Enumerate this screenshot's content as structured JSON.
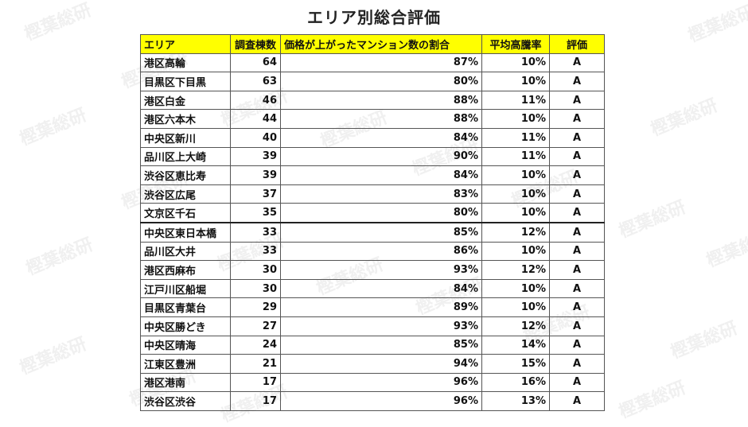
{
  "title": "エリア別総合評価",
  "table": {
    "headers": [
      "エリア",
      "調査棟数",
      "価格が上がったマンション数の割合",
      "平均高騰率",
      "評価"
    ],
    "rows": [
      {
        "area": "港区高輪",
        "count": "64",
        "share": "87%",
        "rate": "10%",
        "grade": "A"
      },
      {
        "area": "目黒区下目黒",
        "count": "63",
        "share": "80%",
        "rate": "10%",
        "grade": "A"
      },
      {
        "area": "港区白金",
        "count": "46",
        "share": "88%",
        "rate": "11%",
        "grade": "A"
      },
      {
        "area": "港区六本木",
        "count": "44",
        "share": "88%",
        "rate": "10%",
        "grade": "A"
      },
      {
        "area": "中央区新川",
        "count": "40",
        "share": "84%",
        "rate": "11%",
        "grade": "A"
      },
      {
        "area": "品川区上大崎",
        "count": "39",
        "share": "90%",
        "rate": "11%",
        "grade": "A"
      },
      {
        "area": "渋谷区恵比寿",
        "count": "39",
        "share": "84%",
        "rate": "10%",
        "grade": "A"
      },
      {
        "area": "渋谷区広尾",
        "count": "37",
        "share": "83%",
        "rate": "10%",
        "grade": "A"
      },
      {
        "area": "文京区千石",
        "count": "35",
        "share": "80%",
        "rate": "10%",
        "grade": "A"
      },
      {
        "area": "中央区東日本橋",
        "count": "33",
        "share": "85%",
        "rate": "12%",
        "grade": "A"
      },
      {
        "area": "品川区大井",
        "count": "33",
        "share": "86%",
        "rate": "10%",
        "grade": "A"
      },
      {
        "area": "港区西麻布",
        "count": "30",
        "share": "93%",
        "rate": "12%",
        "grade": "A"
      },
      {
        "area": "江戸川区船堀",
        "count": "30",
        "share": "84%",
        "rate": "10%",
        "grade": "A"
      },
      {
        "area": "目黒区青葉台",
        "count": "29",
        "share": "89%",
        "rate": "10%",
        "grade": "A"
      },
      {
        "area": "中央区勝どき",
        "count": "27",
        "share": "93%",
        "rate": "12%",
        "grade": "A"
      },
      {
        "area": "中央区晴海",
        "count": "24",
        "share": "85%",
        "rate": "14%",
        "grade": "A"
      },
      {
        "area": "江東区豊洲",
        "count": "21",
        "share": "94%",
        "rate": "15%",
        "grade": "A"
      },
      {
        "area": "港区港南",
        "count": "17",
        "share": "96%",
        "rate": "16%",
        "grade": "A"
      },
      {
        "area": "渋谷区渋谷",
        "count": "17",
        "share": "96%",
        "rate": "13%",
        "grade": "A"
      }
    ]
  },
  "watermark": "樫葉総研"
}
